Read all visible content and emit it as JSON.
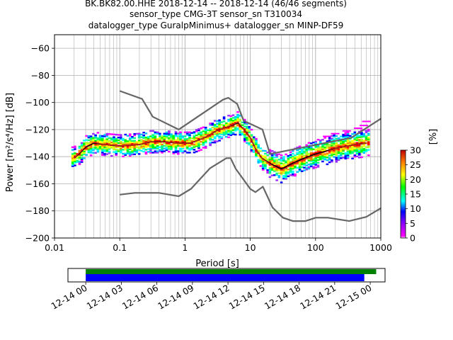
{
  "header": {
    "title_line1": "BK.BK82.00.HHE   2018-12-14 -- 2018-12-14  (46/46 segments)",
    "title_line2": "sensor_type CMG-3T sensor_sn T310034",
    "title_line3": "datalogger_type GuralpMinimus+ datalogger_sn MINP-DF59"
  },
  "chart_data": [
    {
      "type": "heatmap",
      "title": "BK.BK82.00.HHE   2018-12-14 -- 2018-12-14  (46/46 segments)",
      "xlabel": "Period [s]",
      "ylabel": "Power [m²/s⁴/Hz] [dB]",
      "xscale": "log",
      "xlim": [
        0.01,
        1000
      ],
      "ylim": [
        -200,
        -50
      ],
      "x_ticks": [
        0.01,
        0.1,
        1,
        10,
        100,
        1000
      ],
      "x_tick_labels": [
        "0.01",
        "0.1",
        "1",
        "10",
        "100",
        "1000"
      ],
      "y_ticks": [
        -200,
        -180,
        -160,
        -140,
        -120,
        -100,
        -80,
        -60
      ],
      "y_tick_labels": [
        "−200",
        "−180",
        "−160",
        "−140",
        "−120",
        "−100",
        "−80",
        "−60"
      ],
      "grid": true,
      "colorbar": {
        "label": "[%]",
        "range": [
          0,
          30
        ],
        "ticks": [
          0,
          5,
          10,
          15,
          20,
          25,
          30
        ],
        "tick_labels": [
          "0",
          "5",
          "10",
          "15",
          "20",
          "25",
          "30"
        ],
        "colormap": "pqlx"
      },
      "series": [
        {
          "key": "nhnm",
          "color": "#666666",
          "points": [
            [
              0.1,
              -91.5
            ],
            [
              0.22,
              -97.4
            ],
            [
              0.32,
              -110.5
            ],
            [
              0.8,
              -120
            ],
            [
              3.8,
              -98
            ],
            [
              4.6,
              -96.5
            ],
            [
              6.3,
              -101
            ],
            [
              7.9,
              -113.5
            ],
            [
              15.4,
              -120
            ],
            [
              20,
              -138
            ],
            [
              354.8,
              -126
            ],
            [
              1000,
              -112
            ]
          ]
        },
        {
          "key": "nlnm",
          "color": "#666666",
          "points": [
            [
              0.1,
              -168
            ],
            [
              0.17,
              -166.7
            ],
            [
              0.4,
              -166.7
            ],
            [
              0.8,
              -169.2
            ],
            [
              1.24,
              -163.7
            ],
            [
              2.4,
              -148.6
            ],
            [
              4.3,
              -141.1
            ],
            [
              5,
              -141.1
            ],
            [
              6,
              -149
            ],
            [
              10,
              -163.8
            ],
            [
              12,
              -166.2
            ],
            [
              15.6,
              -162.1
            ],
            [
              21.9,
              -177.5
            ],
            [
              31.6,
              -185
            ],
            [
              45,
              -187.5
            ],
            [
              70,
              -187.5
            ],
            [
              101,
              -185
            ],
            [
              154,
              -185
            ],
            [
              328,
              -187.5
            ],
            [
              600,
              -184.4
            ],
            [
              1000,
              -178
            ]
          ]
        },
        {
          "key": "mean",
          "color": "#000000",
          "points": [
            [
              0.02,
              -141
            ],
            [
              0.025,
              -137
            ],
            [
              0.03,
              -133
            ],
            [
              0.04,
              -130
            ],
            [
              0.06,
              -131
            ],
            [
              0.1,
              -132
            ],
            [
              0.2,
              -131
            ],
            [
              0.3,
              -129
            ],
            [
              0.5,
              -129
            ],
            [
              0.8,
              -130
            ],
            [
              1.2,
              -130
            ],
            [
              2,
              -126
            ],
            [
              3,
              -121
            ],
            [
              4.5,
              -118
            ],
            [
              6.5,
              -115
            ],
            [
              8,
              -120
            ],
            [
              10,
              -126
            ],
            [
              12,
              -134
            ],
            [
              15,
              -141
            ],
            [
              20,
              -145
            ],
            [
              30,
              -149
            ],
            [
              40,
              -146
            ],
            [
              60,
              -142
            ],
            [
              100,
              -138
            ],
            [
              200,
              -134
            ],
            [
              400,
              -131
            ],
            [
              600,
              -130
            ]
          ]
        },
        {
          "key": "mode",
          "color": "#d62728",
          "points": [
            [
              0.02,
              -141
            ],
            [
              0.025,
              -136.5
            ],
            [
              0.03,
              -132.5
            ],
            [
              0.04,
              -129.5
            ],
            [
              0.06,
              -131
            ],
            [
              0.1,
              -132
            ],
            [
              0.2,
              -131
            ],
            [
              0.3,
              -129
            ],
            [
              0.5,
              -129
            ],
            [
              0.8,
              -130
            ],
            [
              1.2,
              -130
            ],
            [
              2,
              -126
            ],
            [
              3,
              -121
            ],
            [
              4.5,
              -118
            ],
            [
              6.5,
              -114.5
            ],
            [
              8,
              -120
            ],
            [
              10,
              -126
            ],
            [
              12,
              -134
            ],
            [
              15,
              -141
            ],
            [
              20,
              -145.5
            ],
            [
              30,
              -150
            ],
            [
              40,
              -147
            ],
            [
              60,
              -143
            ],
            [
              100,
              -139
            ],
            [
              200,
              -134
            ],
            [
              400,
              -131
            ],
            [
              600,
              -130
            ]
          ]
        }
      ],
      "psd_cloud": {
        "center": [
          [
            0.02,
            -141
          ],
          [
            0.025,
            -137
          ],
          [
            0.03,
            -133
          ],
          [
            0.04,
            -130
          ],
          [
            0.06,
            -131
          ],
          [
            0.1,
            -132
          ],
          [
            0.2,
            -131
          ],
          [
            0.3,
            -129
          ],
          [
            0.5,
            -129
          ],
          [
            0.8,
            -130
          ],
          [
            1.2,
            -130
          ],
          [
            2,
            -126
          ],
          [
            3,
            -121
          ],
          [
            4.5,
            -118
          ],
          [
            6.5,
            -115
          ],
          [
            8,
            -120
          ],
          [
            10,
            -126
          ],
          [
            12,
            -134
          ],
          [
            15,
            -141
          ],
          [
            20,
            -145
          ],
          [
            30,
            -149
          ],
          [
            40,
            -146
          ],
          [
            60,
            -142
          ],
          [
            100,
            -138
          ],
          [
            200,
            -134
          ],
          [
            400,
            -131
          ],
          [
            600,
            -130
          ]
        ],
        "x_range": [
          0.019,
          650
        ],
        "spread_db": 10,
        "outliers": [
          [
            150,
            -125
          ],
          [
            200,
            -123
          ],
          [
            300,
            -121
          ],
          [
            450,
            -119
          ],
          [
            550,
            -117
          ],
          [
            600,
            -114
          ]
        ]
      }
    },
    {
      "type": "timeline",
      "x_range": [
        "2018-12-13T22:30",
        "2018-12-15T01:15"
      ],
      "x_ticks": [
        "12-14 00",
        "12-14 03",
        "12-14 06",
        "12-14 09",
        "12-14 12",
        "12-14 15",
        "12-14 18",
        "12-14 21",
        "12-15 00"
      ],
      "bars": [
        {
          "key": "data_coverage",
          "color": "#008000",
          "start": "2018-12-14T00:00",
          "end": "2018-12-15T00:30"
        },
        {
          "key": "psd_coverage",
          "color": "#0000ff",
          "start": "2018-12-14T00:00",
          "end": "2018-12-14T23:30"
        }
      ]
    }
  ]
}
